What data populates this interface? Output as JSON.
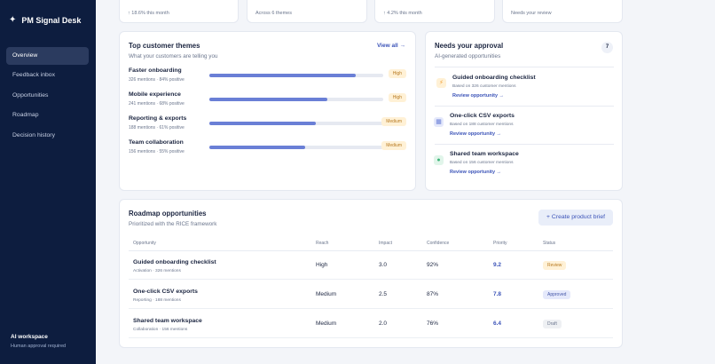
{
  "app": {
    "title": "PM Signal Desk"
  },
  "sidebar": {
    "items": [
      {
        "label": "Overview",
        "active": true
      },
      {
        "label": "Feedback inbox"
      },
      {
        "label": "Opportunities"
      },
      {
        "label": "Roadmap"
      },
      {
        "label": "Decision history"
      }
    ],
    "workspace": {
      "title": "AI workspace",
      "subtitle": "Human approval required"
    }
  },
  "stats": [
    {
      "text": "↑ 18.6% this month"
    },
    {
      "text": "Across 6 themes"
    },
    {
      "text": "↑ 4.2% this month"
    },
    {
      "text": "Needs your review"
    }
  ],
  "themes_card": {
    "title": "Top customer themes",
    "subtitle": "What your customers are telling you",
    "view_all": "View all →",
    "themes": [
      {
        "name": "Faster onboarding",
        "meta": "326 mentions · 84% positive",
        "share": 0.84,
        "tag": "High"
      },
      {
        "name": "Mobile experience",
        "meta": "241 mentions · 68% positive",
        "share": 0.68,
        "tag": "High"
      },
      {
        "name": "Reporting & exports",
        "meta": "188 mentions · 61% positive",
        "share": 0.61,
        "tag": "Medium"
      },
      {
        "name": "Team collaboration",
        "meta": "156 mentions · 55% positive",
        "share": 0.55,
        "tag": "Medium"
      }
    ]
  },
  "approval_card": {
    "title": "Needs your approval",
    "subtitle": "AI-generated opportunities",
    "count": "7",
    "items": [
      {
        "title": "Guided onboarding checklist",
        "meta": "Based on 326 customer mentions",
        "link": "Review opportunity →",
        "icon": "bolt-icon",
        "color": "#f2a23a"
      },
      {
        "title": "One-click CSV exports",
        "meta": "Based on 188 customer mentions",
        "link": "Review opportunity →",
        "icon": "table-icon",
        "color": "#6a7fd6"
      },
      {
        "title": "Shared team workspace",
        "meta": "Based on 156 customer mentions",
        "link": "Review opportunity →",
        "icon": "team-icon",
        "color": "#3fb57a"
      }
    ]
  },
  "roadmap": {
    "title": "Roadmap opportunities",
    "subtitle": "Prioritized with the RICE framework",
    "button": "Create product brief",
    "columns": [
      "Opportunity",
      "Reach",
      "Impact",
      "Confidence",
      "Priority",
      "Status"
    ],
    "rows": [
      {
        "title": "Guided onboarding checklist",
        "meta": "Activation · 326 mentions",
        "reach": "High",
        "impact": "3.0",
        "confidence": "92%",
        "priority": "9.2",
        "status": "Review"
      },
      {
        "title": "One-click CSV exports",
        "meta": "Reporting · 188 mentions",
        "reach": "Medium",
        "impact": "2.5",
        "confidence": "87%",
        "priority": "7.8",
        "status": "Approved"
      },
      {
        "title": "Shared team workspace",
        "meta": "Collaboration · 156 mentions",
        "reach": "Medium",
        "impact": "2.0",
        "confidence": "76%",
        "priority": "6.4",
        "status": "Draft"
      }
    ]
  }
}
